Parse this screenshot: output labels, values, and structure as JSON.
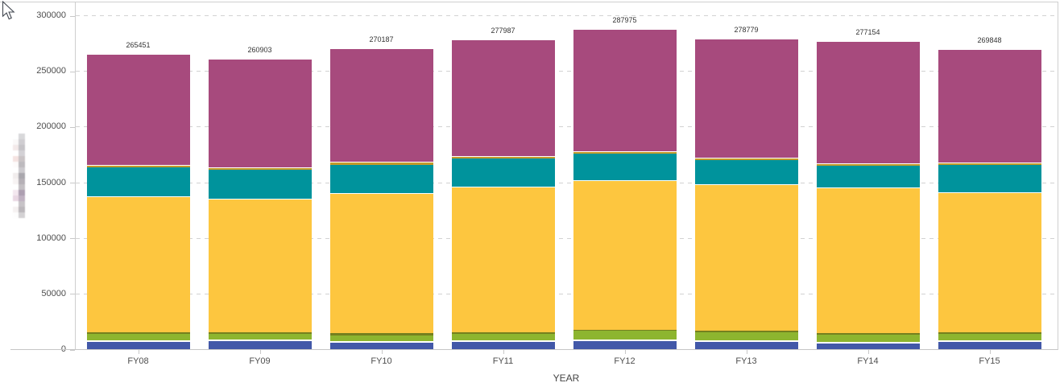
{
  "chart_data": {
    "type": "bar",
    "stacked": true,
    "title": "",
    "xlabel": "YEAR",
    "ylabel": "",
    "categories": [
      "FY08",
      "FY09",
      "FY10",
      "FY11",
      "FY12",
      "FY13",
      "FY14",
      "FY15"
    ],
    "totals": [
      265451,
      260903,
      270187,
      277987,
      287975,
      278779,
      277154,
      269848
    ],
    "series": [
      {
        "name": "segment-blue",
        "color": "#4258A8",
        "values": [
          7100,
          7800,
          6700,
          7100,
          7800,
          7400,
          5700,
          6900
        ]
      },
      {
        "name": "segment-green",
        "color": "#8DB52F",
        "values": [
          7400,
          7000,
          6500,
          7200,
          9200,
          8400,
          7900,
          7900
        ]
      },
      {
        "name": "segment-olive",
        "color": "#75801E",
        "values": [
          1500,
          1300,
          1700,
          1500,
          700,
          1200,
          1700,
          1000
        ]
      },
      {
        "name": "segment-yellow",
        "color": "#FDC63F",
        "values": [
          121500,
          119200,
          125000,
          130400,
          133750,
          130850,
          129650,
          125500
        ]
      },
      {
        "name": "segment-teal",
        "color": "#00939C",
        "values": [
          26500,
          26300,
          26700,
          26000,
          25050,
          22850,
          20950,
          24900
        ]
      },
      {
        "name": "segment-gold",
        "color": "#C49A2A",
        "values": [
          1500,
          1500,
          1500,
          1500,
          1500,
          1200,
          1300,
          1400
        ]
      },
      {
        "name": "segment-purple",
        "color": "#A74A7D",
        "values": [
          99951,
          97803,
          102087,
          104287,
          109975,
          106879,
          109954,
          102248
        ]
      }
    ],
    "yticks": [
      0,
      50000,
      100000,
      150000,
      200000,
      250000,
      300000
    ],
    "ylim": [
      0,
      300000
    ],
    "grid": "dashed-horizontal",
    "legend": "redacted"
  },
  "colors": {
    "axis_line": "#cfcfcf",
    "grid_line": "#d2d2d2",
    "tick_label": "#4e4e4e",
    "bar_label": "#333333",
    "separator": "#ffffff"
  }
}
